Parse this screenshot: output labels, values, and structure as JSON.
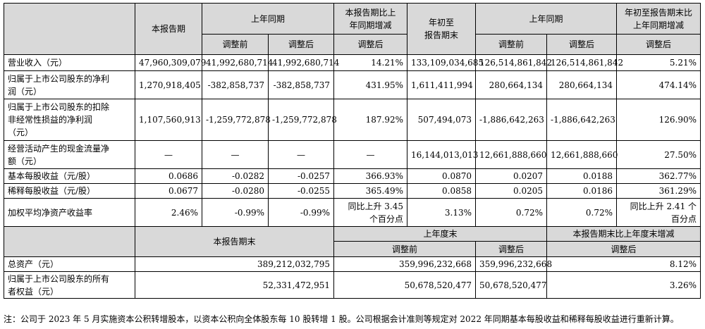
{
  "header": {
    "current_period": "本报告期",
    "last_year_same_period": "上年同期",
    "yoy_change_line1": "本报告期比上",
    "yoy_change_line2": "年同期增减",
    "ytd_line1": "年初至",
    "ytd_line2": "报告期末",
    "last_year_same_period_2": "上年同期",
    "ytd_yoy_line1": "年初至报告期末比",
    "ytd_yoy_line2": "上年同期增减",
    "before_adj": "调整前",
    "after_adj": "调整后",
    "after_adj_3": "调整后",
    "before_adj_2": "调整前",
    "after_adj_2": "调整后",
    "after_adj_4": "调整后"
  },
  "rows": [
    {
      "label": "营业收入（元）",
      "cells": [
        "47,960,309,079",
        "41,992,680,714",
        "41,992,680,714",
        "14.21%",
        "133,109,034,685",
        "126,514,861,842",
        "126,514,861,842",
        "5.21%"
      ]
    },
    {
      "label_line1": "归属于上市公司股东的净利",
      "label_line2": "润（元）",
      "cells": [
        "1,270,918,405",
        "-382,858,737",
        "-382,858,737",
        "431.95%",
        "1,611,411,994",
        "280,664,134",
        "280,664,134",
        "474.14%"
      ]
    },
    {
      "label_line1": "归属于上市公司股东的扣除",
      "label_line2": "非经常性损益的净利润",
      "label_line3": "（元）",
      "cells": [
        "1,107,560,913",
        "-1,259,772,878",
        "-1,259,772,878",
        "187.92%",
        "507,494,073",
        "-1,886,642,263",
        "-1,886,642,263",
        "126.90%"
      ]
    },
    {
      "label_line1": "经营活动产生的现金流量净",
      "label_line2": "额（元）",
      "cells": [
        "—",
        "—",
        "—",
        "—",
        "16,144,013,013",
        "12,661,888,660",
        "12,661,888,660",
        "27.50%"
      ]
    },
    {
      "label": "基本每股收益（元/股）",
      "cells": [
        "0.0686",
        "-0.0282",
        "-0.0257",
        "366.93%",
        "0.0870",
        "0.0207",
        "0.0188",
        "362.77%"
      ]
    },
    {
      "label": "稀释每股收益（元/股）",
      "cells": [
        "0.0677",
        "-0.0280",
        "-0.0255",
        "365.49%",
        "0.0858",
        "0.0205",
        "0.0186",
        "361.29%"
      ]
    },
    {
      "label": "加权平均净资产收益率",
      "cells": [
        "2.46%",
        "-0.99%",
        "-0.99%",
        "同比上升 3.45",
        "3.13%",
        "0.72%",
        "0.72%",
        "同比上升 2.41 个"
      ],
      "extra4": "个百分点",
      "extra8": "百分点"
    }
  ],
  "balance_header": {
    "period_end": "本报告期末",
    "last_year_end": "上年度末",
    "change": "本报告期末比上年度末增减",
    "before_adj": "调整前",
    "after_adj": "调整后",
    "after_adj_2": "调整后"
  },
  "balance_rows": [
    {
      "label": "总资产（元）",
      "cells": [
        "389,212,032,795",
        "359,996,232,668",
        "359,996,232,668",
        "8.12%"
      ]
    },
    {
      "label_line1": "归属于上市公司股东的所有",
      "label_line2": "者权益（元）",
      "cells": [
        "52,331,472,951",
        "50,678,520,477",
        "50,678,520,477",
        "3.26%"
      ]
    }
  ],
  "note": "注：公司于 2023 年 5 月实施资本公积转增股本，以资本公积向全体股东每 10 股转增 1 股。公司根据会计准则等规定对 2022 年同期基本每股收益和稀释每股收益进行重新计算。"
}
